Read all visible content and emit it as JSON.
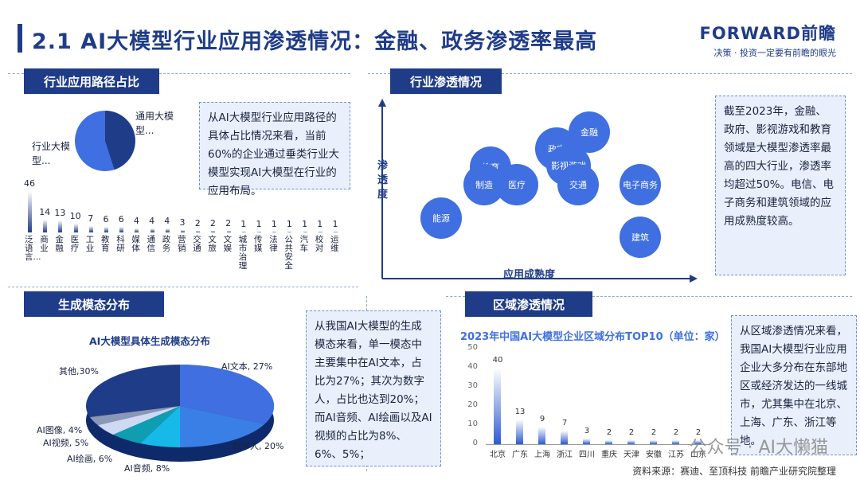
{
  "title": "2.1 AI大模型行业应用渗透情况：金融、政务渗透率最高",
  "logo": {
    "main": "FORWARD前瞻",
    "sub": "决策 · 投资一定要有前瞻的眼光"
  },
  "sections": {
    "path": "行业应用路径占比",
    "penetration": "行业渗透情况",
    "modality": "生成模态分布",
    "region": "区域渗透情况"
  },
  "pie_labels": {
    "general": "通用大模型...",
    "industry": "行业大模型..."
  },
  "path_text": "从AI大模型行业应用路径的具体占比情况来看，当前60%的企业通过垂类行业大模型实现AI大模型在行业的应用布局。",
  "bar_chart": {
    "categories": [
      "泛语言...",
      "商业",
      "金融",
      "医疗",
      "工业",
      "教育",
      "科研",
      "媒体",
      "通信",
      "政务",
      "营销",
      "交通",
      "文旅",
      "文娱",
      "城市治理",
      "传媒",
      "法律",
      "公共安全",
      "汽车",
      "校对",
      "运维"
    ],
    "values": [
      46,
      14,
      13,
      10,
      7,
      6,
      6,
      4,
      4,
      4,
      3,
      2,
      2,
      2,
      1,
      1,
      1,
      1,
      1,
      1,
      1
    ]
  },
  "bubbles": {
    "y_label": "渗透度",
    "x_label": "应用成熟度",
    "items": [
      "金融",
      "政府",
      "影视游戏",
      "教育",
      "制造",
      "医疗",
      "交通",
      "电子商务",
      "能源",
      "建筑"
    ]
  },
  "penetration_text": "截至2023年，金融、政府、影视游戏和教育领域是大模型渗透率最高的四大行业，渗透率均超过50%。电信、电子商务和建筑领域的应用成熟度较高。",
  "modality_chart": {
    "title": "AI大模型具体生成模态分布",
    "labels": [
      "AI文本, 27%",
      "数字人, 20%",
      "AI音频, 8%",
      "AI绘画, 6%",
      "AI视频, 5%",
      "AI图像, 4%",
      "其他,30%"
    ]
  },
  "modality_text": "从我国AI大模型的生成模态来看，单一模态中主要集中在AI文本，占比为27%；其次为数字人，占比也达到20%；而AI音频、AI绘画以及AI视频的占比为8%、6%、5%；",
  "region_chart": {
    "title": "2023年中国AI大模型企业区域分布TOP10（单位：家）",
    "categories": [
      "北京",
      "广东",
      "上海",
      "浙江",
      "四川",
      "重庆",
      "天津",
      "安徽",
      "江苏",
      "山东"
    ],
    "values": [
      40,
      13,
      9,
      7,
      3,
      2,
      2,
      2,
      2,
      2
    ],
    "yticks": [
      "50",
      "40",
      "30",
      "20",
      "10",
      "0"
    ]
  },
  "region_text": "从区域渗透情况来看，我国AI大模型行业应用企业大多分布在东部地区或经济发达的一线城市，尤其集中在北京、上海、广东、浙江等地。",
  "footer": "资料来源：赛迪、至顶科技 前瞻产业研究院整理",
  "watermark": "公众号 · AI大懒猫"
}
